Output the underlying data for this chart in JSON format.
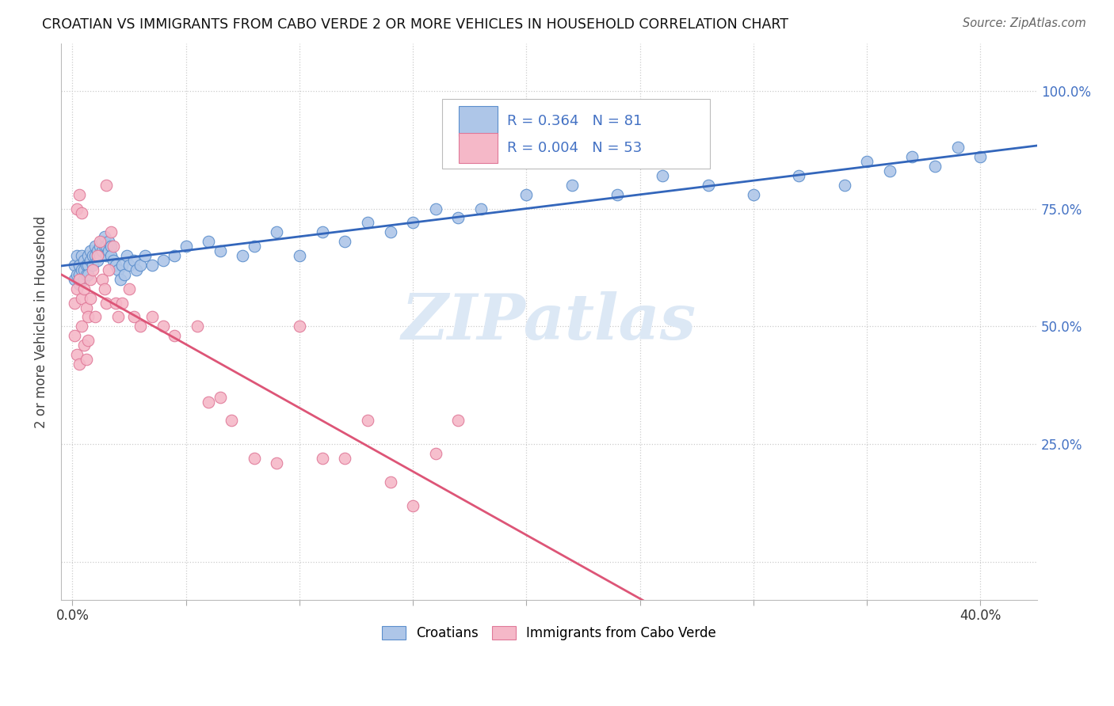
{
  "title": "CROATIAN VS IMMIGRANTS FROM CABO VERDE 2 OR MORE VEHICLES IN HOUSEHOLD CORRELATION CHART",
  "source": "Source: ZipAtlas.com",
  "ylabel": "2 or more Vehicles in Household",
  "ytick_vals": [
    0.0,
    0.25,
    0.5,
    0.75,
    1.0
  ],
  "ytick_labels_right": [
    "",
    "25.0%",
    "50.0%",
    "75.0%",
    "100.0%"
  ],
  "xtick_vals": [
    0.0,
    0.05,
    0.1,
    0.15,
    0.2,
    0.25,
    0.3,
    0.35,
    0.4
  ],
  "xtick_labels": [
    "0.0%",
    "",
    "",
    "",
    "",
    "",
    "",
    "",
    "40.0%"
  ],
  "xlim": [
    -0.005,
    0.425
  ],
  "ylim": [
    -0.08,
    1.1
  ],
  "R_croatian": 0.364,
  "N_croatian": 81,
  "R_cabo_verde": 0.004,
  "N_cabo_verde": 53,
  "color_croatian_fill": "#aec6e8",
  "color_croatian_edge": "#5b8ecc",
  "color_cabo_verde_fill": "#f5b8c8",
  "color_cabo_verde_edge": "#e07898",
  "line_color_croatian": "#3366bb",
  "line_color_cabo_verde": "#dd5577",
  "watermark_color": "#dce8f5",
  "background_color": "#ffffff",
  "grid_color": "#cccccc",
  "right_axis_color": "#4472c4",
  "legend_box_color": "#e8e8e8",
  "croatian_x": [
    0.001,
    0.001,
    0.002,
    0.002,
    0.003,
    0.003,
    0.003,
    0.004,
    0.004,
    0.005,
    0.005,
    0.005,
    0.006,
    0.006,
    0.007,
    0.007,
    0.007,
    0.008,
    0.008,
    0.009,
    0.009,
    0.01,
    0.01,
    0.011,
    0.011,
    0.012,
    0.012,
    0.013,
    0.013,
    0.014,
    0.014,
    0.015,
    0.015,
    0.016,
    0.016,
    0.017,
    0.017,
    0.018,
    0.019,
    0.02,
    0.021,
    0.022,
    0.023,
    0.024,
    0.025,
    0.027,
    0.028,
    0.03,
    0.032,
    0.035,
    0.04,
    0.045,
    0.05,
    0.06,
    0.065,
    0.075,
    0.08,
    0.09,
    0.1,
    0.11,
    0.12,
    0.13,
    0.14,
    0.15,
    0.16,
    0.17,
    0.18,
    0.2,
    0.22,
    0.24,
    0.26,
    0.28,
    0.3,
    0.32,
    0.34,
    0.35,
    0.36,
    0.37,
    0.38,
    0.39,
    0.4
  ],
  "croatian_y": [
    0.63,
    0.6,
    0.65,
    0.61,
    0.63,
    0.61,
    0.59,
    0.65,
    0.62,
    0.64,
    0.62,
    0.6,
    0.63,
    0.61,
    0.65,
    0.63,
    0.61,
    0.66,
    0.64,
    0.65,
    0.63,
    0.67,
    0.65,
    0.66,
    0.64,
    0.67,
    0.65,
    0.68,
    0.66,
    0.69,
    0.67,
    0.67,
    0.65,
    0.68,
    0.66,
    0.67,
    0.65,
    0.64,
    0.63,
    0.62,
    0.6,
    0.63,
    0.61,
    0.65,
    0.63,
    0.64,
    0.62,
    0.63,
    0.65,
    0.63,
    0.64,
    0.65,
    0.67,
    0.68,
    0.66,
    0.65,
    0.67,
    0.7,
    0.65,
    0.7,
    0.68,
    0.72,
    0.7,
    0.72,
    0.75,
    0.73,
    0.75,
    0.78,
    0.8,
    0.78,
    0.82,
    0.8,
    0.78,
    0.82,
    0.8,
    0.85,
    0.83,
    0.86,
    0.84,
    0.88,
    0.86
  ],
  "cabo_verde_x": [
    0.001,
    0.001,
    0.002,
    0.002,
    0.003,
    0.003,
    0.004,
    0.004,
    0.005,
    0.005,
    0.006,
    0.006,
    0.007,
    0.007,
    0.008,
    0.008,
    0.009,
    0.01,
    0.011,
    0.012,
    0.013,
    0.014,
    0.015,
    0.016,
    0.017,
    0.018,
    0.019,
    0.02,
    0.022,
    0.025,
    0.027,
    0.03,
    0.035,
    0.04,
    0.045,
    0.055,
    0.06,
    0.065,
    0.07,
    0.08,
    0.09,
    0.1,
    0.11,
    0.12,
    0.13,
    0.14,
    0.15,
    0.16,
    0.17,
    0.002,
    0.003,
    0.004,
    0.015
  ],
  "cabo_verde_y": [
    0.55,
    0.48,
    0.58,
    0.44,
    0.6,
    0.42,
    0.56,
    0.5,
    0.58,
    0.46,
    0.54,
    0.43,
    0.52,
    0.47,
    0.6,
    0.56,
    0.62,
    0.52,
    0.65,
    0.68,
    0.6,
    0.58,
    0.55,
    0.62,
    0.7,
    0.67,
    0.55,
    0.52,
    0.55,
    0.58,
    0.52,
    0.5,
    0.52,
    0.5,
    0.48,
    0.5,
    0.34,
    0.35,
    0.3,
    0.22,
    0.21,
    0.5,
    0.22,
    0.22,
    0.3,
    0.17,
    0.12,
    0.23,
    0.3,
    0.75,
    0.78,
    0.74,
    0.8
  ]
}
